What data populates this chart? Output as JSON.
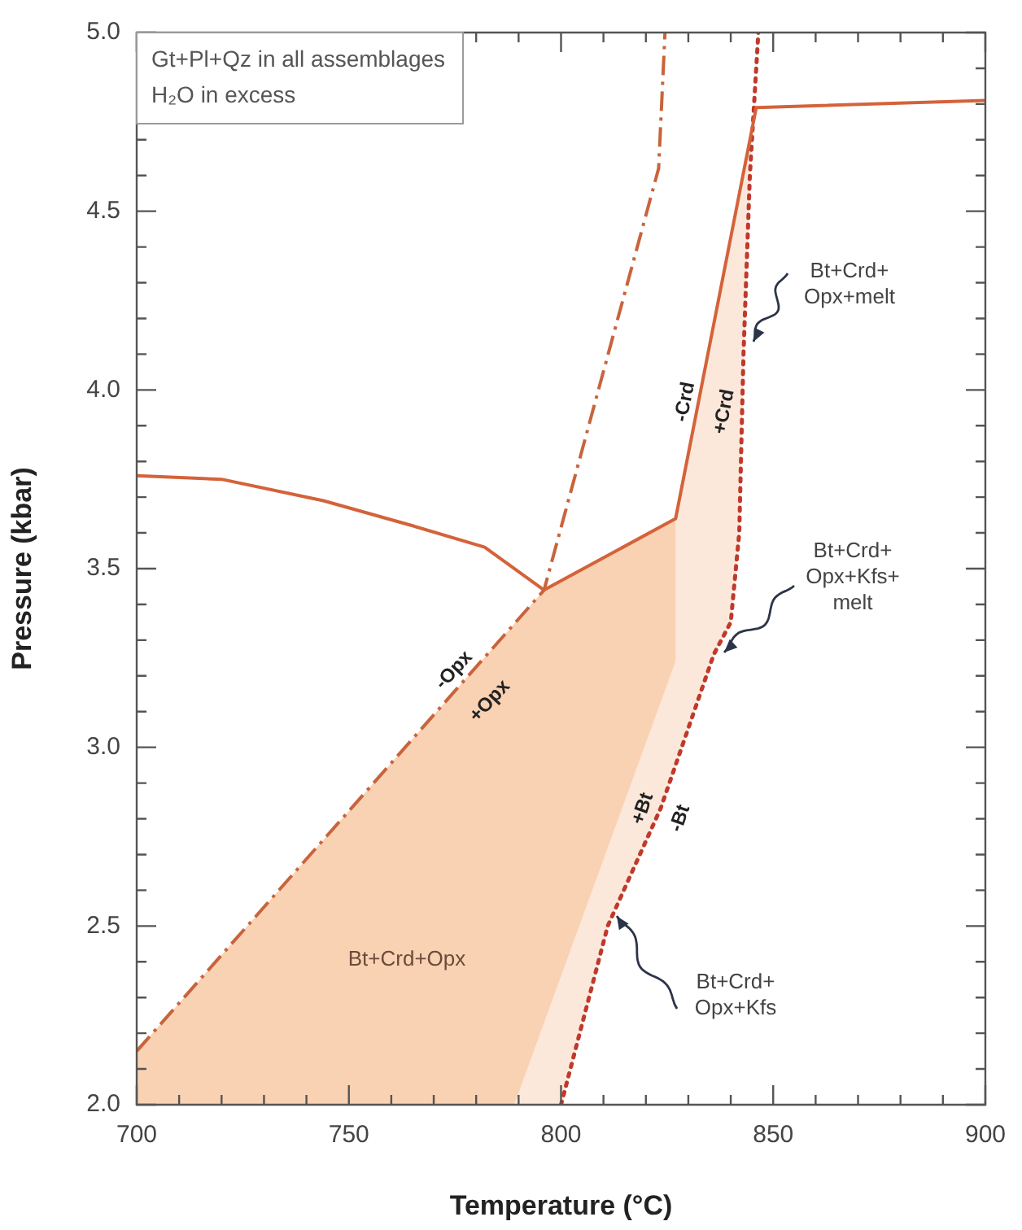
{
  "chart_data": {
    "type": "line",
    "xlabel": "Temperature (°C)",
    "ylabel": "Pressure (kbar)",
    "xlim": [
      700,
      900
    ],
    "ylim": [
      2,
      5
    ],
    "xticks": [
      700,
      {
        "value": 710,
        "label": null
      },
      {
        "value": 720,
        "label": null
      },
      {
        "value": 730,
        "label": null
      },
      {
        "value": 740,
        "label": null
      },
      750,
      {
        "value": 760,
        "label": null
      },
      {
        "value": 770,
        "label": null
      },
      {
        "value": 780,
        "label": null
      },
      {
        "value": 790,
        "label": null
      },
      800,
      {
        "value": 810,
        "label": null
      },
      {
        "value": 820,
        "label": null
      },
      {
        "value": 830,
        "label": null
      },
      {
        "value": 840,
        "label": null
      },
      850,
      {
        "value": 860,
        "label": null
      },
      {
        "value": 870,
        "label": null
      },
      {
        "value": 880,
        "label": null
      },
      {
        "value": 890,
        "label": null
      },
      900
    ],
    "yticks": [
      {
        "value": 2,
        "label": "2.0"
      },
      {
        "value": 2.1,
        "label": null
      },
      {
        "value": 2.2,
        "label": null
      },
      {
        "value": 2.3,
        "label": null
      },
      {
        "value": 2.4,
        "label": null
      },
      2.5,
      {
        "value": 2.6,
        "label": null
      },
      {
        "value": 2.7,
        "label": null
      },
      {
        "value": 2.8,
        "label": null
      },
      {
        "value": 2.9,
        "label": null
      },
      {
        "value": 3,
        "label": "3.0"
      },
      {
        "value": 3.1,
        "label": null
      },
      {
        "value": 3.2,
        "label": null
      },
      {
        "value": 3.3,
        "label": null
      },
      {
        "value": 3.4,
        "label": null
      },
      3.5,
      {
        "value": 3.6,
        "label": null
      },
      {
        "value": 3.7,
        "label": null
      },
      {
        "value": 3.8,
        "label": null
      },
      {
        "value": 3.9,
        "label": null
      },
      {
        "value": 4,
        "label": "4.0"
      },
      {
        "value": 4.1,
        "label": null
      },
      {
        "value": 4.2,
        "label": null
      },
      {
        "value": 4.3,
        "label": null
      },
      {
        "value": 4.4,
        "label": null
      },
      4.5,
      {
        "value": 4.6,
        "label": null
      },
      {
        "value": 4.7,
        "label": null
      },
      {
        "value": 4.8,
        "label": null
      },
      {
        "value": 4.9,
        "label": null
      },
      {
        "value": 5,
        "label": "5.0"
      }
    ],
    "grid": false,
    "legend": false,
    "series": [
      {
        "type": "area",
        "color": "#f9d2b4",
        "x": [
          700,
          700,
          796,
          827,
          827,
          789
        ],
        "values": [
          2.0,
          2.15,
          3.44,
          3.64,
          3.24,
          2.0
        ]
      },
      {
        "type": "area",
        "color": "#fbe8da",
        "x": [
          789,
          827,
          827,
          846,
          845.5,
          844.5,
          843,
          842,
          840,
          836,
          823.5,
          811,
          800
        ],
        "values": [
          2.0,
          3.24,
          3.64,
          4.79,
          4.79,
          4.6,
          4.1,
          3.6,
          3.35,
          3.26,
          2.83,
          2.5,
          2.0
        ]
      },
      {
        "type": "line",
        "color": "#d4623a",
        "line_style": "solid",
        "x": [
          700,
          720,
          744,
          765,
          782,
          796
        ],
        "values": [
          3.76,
          3.75,
          3.69,
          3.62,
          3.56,
          3.44
        ]
      },
      {
        "type": "line",
        "color": "#d4623a",
        "line_style": "solid",
        "x": [
          796,
          827,
          846,
          900
        ],
        "values": [
          3.44,
          3.64,
          4.79,
          4.81
        ]
      },
      {
        "type": "line",
        "color": "#c8643c",
        "line_style": "dashed",
        "x": [
          700,
          796,
          823,
          824.5
        ],
        "values": [
          2.15,
          3.44,
          4.62,
          5.0
        ]
      },
      {
        "type": "line",
        "color": "#c0392b",
        "line_style": "dotted",
        "x": [
          800,
          811,
          823.5,
          836,
          840,
          842,
          843,
          844.5,
          846.5
        ],
        "values": [
          2.0,
          2.5,
          2.83,
          3.26,
          3.35,
          3.6,
          4.1,
          4.6,
          5.0
        ]
      }
    ],
    "annotations": [
      "Gt+Pl+Qz in all assemblages",
      "H₂O in excess",
      "Bt+Crd+Opx",
      "-Opx",
      "+Opx",
      "-Crd",
      "+Crd",
      "+Bt",
      "-Bt",
      "Bt+Crd+\nOpx+melt",
      "Bt+Crd+\nOpx+Kfs+\nmelt",
      "Bt+Crd+\nOpx+Kfs"
    ]
  }
}
